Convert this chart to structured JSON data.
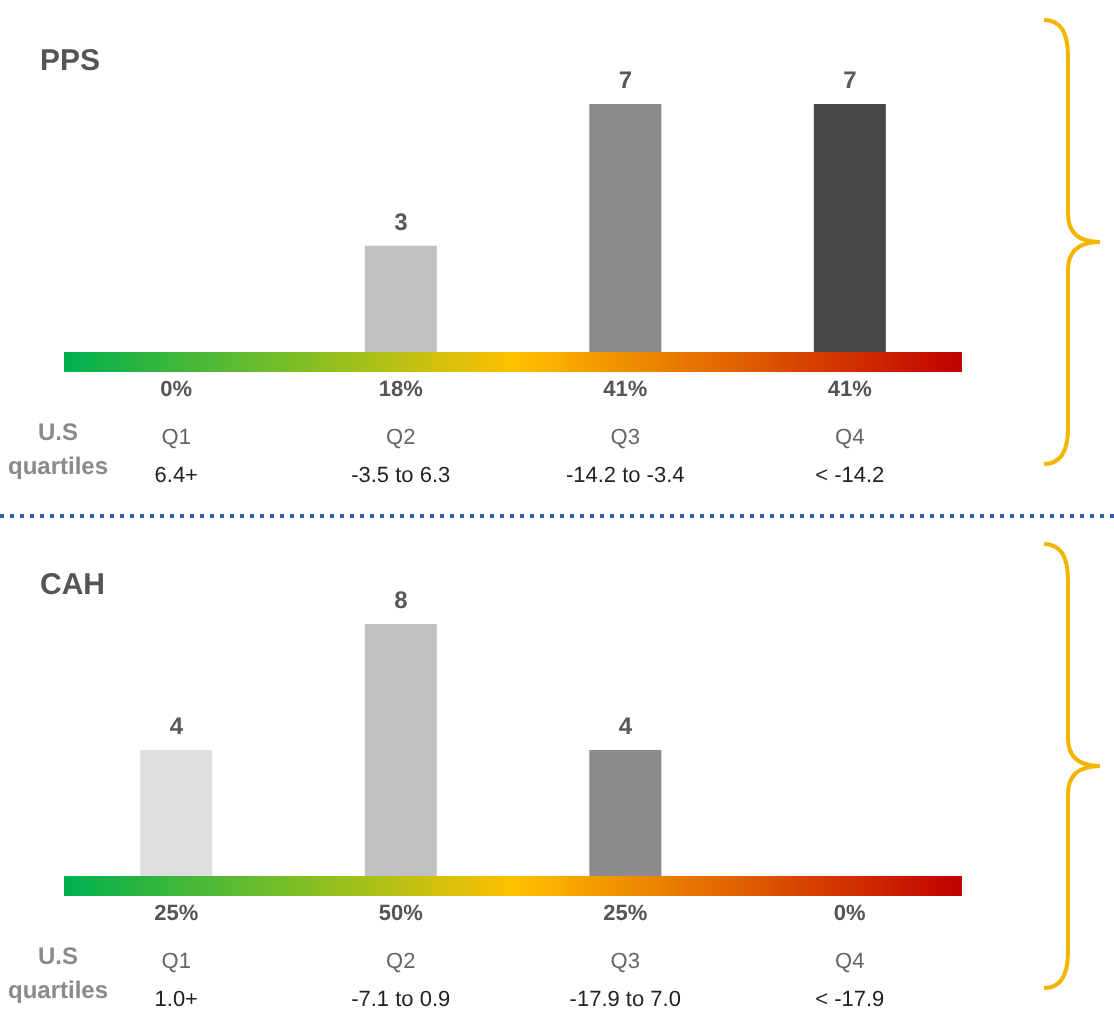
{
  "chart_data": [
    {
      "type": "bar",
      "title": "PPS",
      "categories": [
        "0%\nQ1\n6.4+",
        "18%\nQ2\n-3.5 to 6.3",
        "41%\nQ3\n-14.2 to -3.4",
        "41%\nQ4\n< -14.2"
      ],
      "values": [
        0,
        3,
        7,
        7
      ],
      "colors": [
        "#dedede",
        "#c0c0c0",
        "#8c8c8c",
        "#474747"
      ],
      "value_labels": [
        null,
        "3",
        "7",
        "7"
      ],
      "annotations": [
        "U.S quartiles"
      ]
    },
    {
      "type": "bar",
      "title": "CAH",
      "categories": [
        "25%\nQ1\n1.0+",
        "50%\nQ2\n-7.1 to 0.9",
        "25%\nQ3\n-17.9 to 7.0",
        "0%\nQ4\n< -17.9"
      ],
      "values": [
        4,
        8,
        4,
        0
      ],
      "colors": [
        "#dedede",
        "#c0c0c0",
        "#8c8c8c",
        "#474747"
      ],
      "value_labels": [
        "4",
        "8",
        "4",
        null
      ],
      "annotations": [
        "U.S quartiles"
      ]
    }
  ]
}
